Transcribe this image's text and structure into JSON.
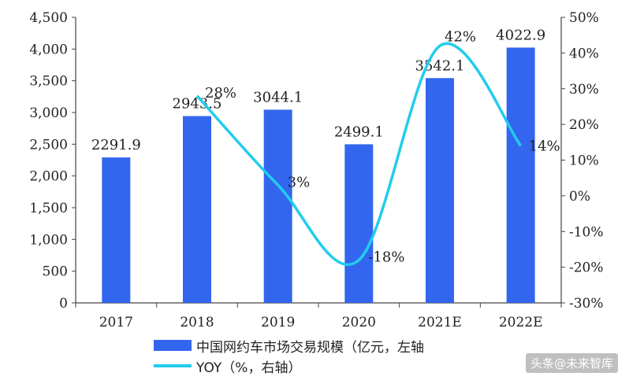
{
  "chart_data": {
    "type": "bar",
    "categories": [
      "2017",
      "2018",
      "2019",
      "2020",
      "2021E",
      "2022E"
    ],
    "series": [
      {
        "name": "中国网约车市场交易规模（亿元，左轴",
        "type": "bar",
        "axis": "left",
        "values": [
          2291.9,
          2943.5,
          3044.1,
          2499.1,
          3542.1,
          4022.9
        ],
        "labels": [
          "2291.9",
          "2943.5",
          "3044.1",
          "2499.1",
          "3542.1",
          "4022.9"
        ],
        "color": "#3366ee"
      },
      {
        "name": "YOY（%，右轴）",
        "type": "line",
        "axis": "right",
        "x": [
          "2018",
          "2019",
          "2020",
          "2021E",
          "2022E"
        ],
        "values": [
          28,
          3,
          -18,
          42,
          14
        ],
        "labels": [
          "28%",
          "3%",
          "-18%",
          "42%",
          "14%"
        ],
        "color": "#22ccee"
      }
    ],
    "y_left": {
      "ylim": [
        0,
        4500
      ],
      "ticks": [
        "0",
        "500",
        "1,000",
        "1,500",
        "2,000",
        "2,500",
        "3,000",
        "3,500",
        "4,000",
        "4,500"
      ]
    },
    "y_right": {
      "ylim": [
        -30,
        50
      ],
      "ticks": [
        "-30%",
        "-20%",
        "-10%",
        "0%",
        "10%",
        "20%",
        "30%",
        "40%",
        "50%"
      ]
    },
    "xlabel": "",
    "ylabel": "",
    "legend_position": "bottom",
    "grid": false
  },
  "watermark": "头条@未来智库"
}
